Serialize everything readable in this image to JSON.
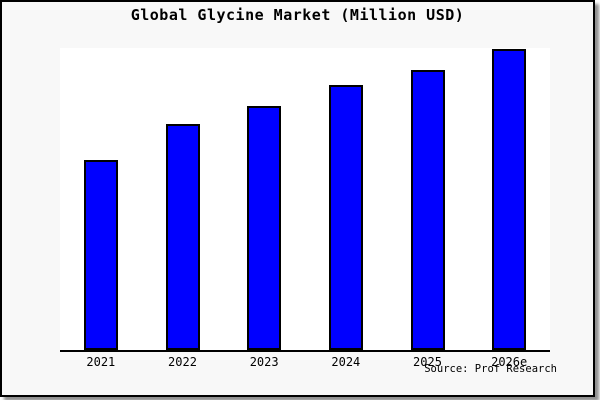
{
  "window": {
    "panel_background": "#f8f8f8",
    "plot_background": "#ffffff",
    "border_color": "#000000",
    "shadow_color": "#8f8f8f"
  },
  "chart_data": {
    "type": "bar",
    "title": "Global Glycine Market (Million USD)",
    "categories": [
      "2021",
      "2022",
      "2023",
      "2024",
      "2025",
      "2026e"
    ],
    "values": [
      63,
      75,
      81,
      88,
      93,
      100
    ],
    "values_note": "No y-axis scale, tick labels or gridlines are shown in the image; values are bar heights relative to the tallest bar (2026e = 100)",
    "xlabel": "",
    "ylabel": "",
    "ylim": [
      0,
      100
    ],
    "grid": false,
    "legend": false,
    "y_axis_visible": false,
    "bar_color": "#0000ff",
    "bar_edge_color": "#000000",
    "title_color": "#000000",
    "tick_label_color": "#000000"
  },
  "footer": {
    "source_label": "Source: Prof Research"
  }
}
